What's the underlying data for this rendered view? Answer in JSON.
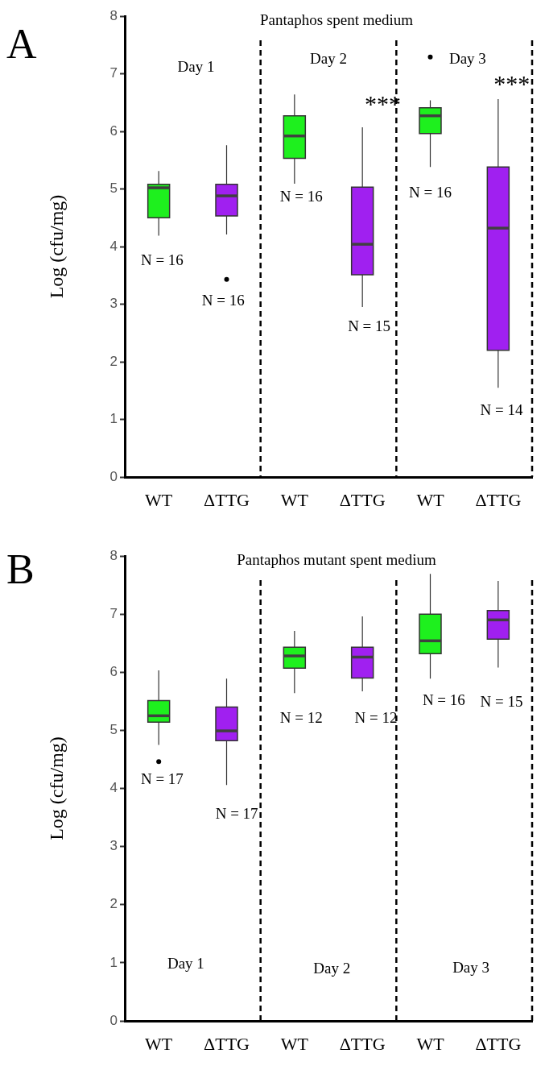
{
  "chart_data": [
    {
      "type": "box",
      "title": "Pantaphos spent medium",
      "ylabel": "Log (cfu/mg)",
      "categories": [
        "WT",
        "ΔTTG",
        "WT",
        "ΔTTG",
        "WT",
        "ΔTTG"
      ],
      "colors": [
        "#1ef01e",
        "#a020f0",
        "#1ef01e",
        "#a020f0",
        "#1ef01e",
        "#a020f0"
      ],
      "boxes": [
        {
          "low": 4.19,
          "q1": 4.5,
          "median": 5.02,
          "q3": 5.08,
          "high": 5.31
        },
        {
          "low": 4.21,
          "q1": 4.53,
          "median": 4.88,
          "q3": 5.08,
          "high": 5.76,
          "outliers": [
            3.43
          ]
        },
        {
          "low": 5.09,
          "q1": 5.53,
          "median": 5.92,
          "q3": 6.27,
          "high": 6.64
        },
        {
          "low": 2.95,
          "q1": 3.51,
          "median": 4.04,
          "q3": 5.03,
          "high": 6.07
        },
        {
          "low": 5.38,
          "q1": 5.96,
          "median": 6.27,
          "q3": 6.41,
          "high": 6.54,
          "outliers": [
            7.29
          ]
        },
        {
          "low": 1.55,
          "q1": 2.2,
          "median": 4.32,
          "q3": 5.38,
          "high": 6.56
        }
      ],
      "ylim": [
        0,
        8
      ],
      "yticks": [
        0,
        1,
        2,
        3,
        4,
        5,
        6,
        7,
        8
      ],
      "grid": false,
      "legend": false,
      "annotations": [
        "A",
        "Day 1",
        "Day 2",
        "Day 3",
        "N = 16",
        "N = 16",
        "N = 16",
        "***",
        "N = 15",
        "N = 16",
        "***",
        "N = 14"
      ]
    },
    {
      "type": "box",
      "title": "Pantaphos mutant spent medium",
      "ylabel": "Log (cfu/mg)",
      "categories": [
        "WT",
        "ΔTTG",
        "WT",
        "ΔTTG",
        "WT",
        "ΔTTG"
      ],
      "colors": [
        "#1ef01e",
        "#a020f0",
        "#1ef01e",
        "#a020f0",
        "#1ef01e",
        "#a020f0"
      ],
      "boxes": [
        {
          "low": 4.75,
          "q1": 5.14,
          "median": 5.25,
          "q3": 5.51,
          "high": 6.03,
          "outliers": [
            4.46
          ]
        },
        {
          "low": 4.06,
          "q1": 4.82,
          "median": 4.99,
          "q3": 5.4,
          "high": 5.89
        },
        {
          "low": 5.64,
          "q1": 6.07,
          "median": 6.28,
          "q3": 6.43,
          "high": 6.71
        },
        {
          "low": 5.67,
          "q1": 5.9,
          "median": 6.26,
          "q3": 6.43,
          "high": 6.96
        },
        {
          "low": 5.89,
          "q1": 6.32,
          "median": 6.54,
          "q3": 7.0,
          "high": 7.69
        },
        {
          "low": 6.08,
          "q1": 6.57,
          "median": 6.9,
          "q3": 7.06,
          "high": 7.57
        }
      ],
      "ylim": [
        0,
        8
      ],
      "yticks": [
        0,
        1,
        2,
        3,
        4,
        5,
        6,
        7,
        8
      ],
      "grid": false,
      "legend": false,
      "annotations": [
        "B",
        "Day 1",
        "Day 2",
        "Day 3",
        "N = 17",
        "N = 17",
        "N = 12",
        "N = 12",
        "N = 16",
        "N = 15"
      ]
    }
  ]
}
